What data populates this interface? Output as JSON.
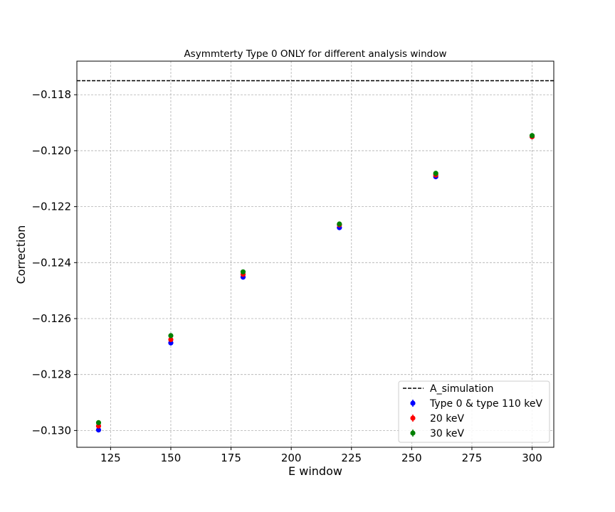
{
  "chart_data": {
    "type": "scatter",
    "title": "Asymmterty Type 0 ONLY for different analysis window",
    "xlabel": "E window",
    "ylabel": "Correction",
    "xlim": [
      111,
      309
    ],
    "ylim": [
      -0.1306,
      -0.1168
    ],
    "xticks": [
      125,
      150,
      175,
      200,
      225,
      250,
      275,
      300
    ],
    "xtick_labels": [
      "125",
      "150",
      "175",
      "200",
      "225",
      "250",
      "275",
      "300"
    ],
    "yticks": [
      -0.118,
      -0.12,
      -0.122,
      -0.124,
      -0.126,
      -0.128,
      -0.13
    ],
    "ytick_labels": [
      "−0.118",
      "−0.120",
      "−0.122",
      "−0.124",
      "−0.126",
      "−0.128",
      "−0.130"
    ],
    "grid": true,
    "legend_position": "lower-right",
    "reference_line": {
      "name": "A_simulation",
      "y": -0.1175,
      "style": "dashed",
      "color": "#000000"
    },
    "series": [
      {
        "name": "Type 0 & type 110 keV",
        "color": "#0000ff",
        "x": [
          120,
          150,
          180,
          220,
          260,
          300
        ],
        "y": [
          -0.12998,
          -0.12687,
          -0.12452,
          -0.12275,
          -0.12093,
          -0.1195
        ]
      },
      {
        "name": "20 keV",
        "color": "#ff0000",
        "x": [
          120,
          150,
          180,
          220,
          260,
          300
        ],
        "y": [
          -0.12984,
          -0.12675,
          -0.12442,
          -0.12265,
          -0.12087,
          -0.1195
        ]
      },
      {
        "name": "30 keV",
        "color": "#008000",
        "x": [
          120,
          150,
          180,
          220,
          260,
          300
        ],
        "y": [
          -0.12972,
          -0.12661,
          -0.12433,
          -0.12262,
          -0.12081,
          -0.11946
        ]
      }
    ]
  }
}
